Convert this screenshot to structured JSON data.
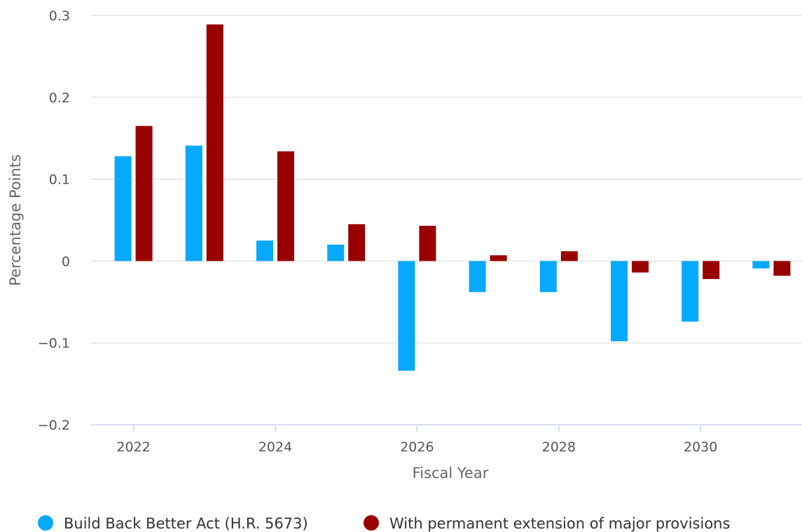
{
  "chart_data": {
    "type": "bar",
    "xlabel": "Fiscal Year",
    "ylabel": "Percentage Points",
    "categories": [
      "2022",
      "2023",
      "2024",
      "2025",
      "2026",
      "2027",
      "2028",
      "2029",
      "2030",
      "2031"
    ],
    "x_tick_labels": [
      "2022",
      "2024",
      "2026",
      "2028",
      "2030"
    ],
    "y_ticks": [
      0.3,
      0.2,
      0.1,
      0,
      -0.1,
      -0.2
    ],
    "y_tick_labels": [
      "0.3",
      "0.2",
      "0.1",
      "0",
      "−0.1",
      "−0.2"
    ],
    "ylim": [
      -0.2,
      0.3
    ],
    "grid": true,
    "legend_position": "bottom",
    "series": [
      {
        "name": "Build Back Better Act (H.R. 5673)",
        "color": "#06a9fc",
        "values": [
          0.128,
          0.141,
          0.025,
          0.02,
          -0.134,
          -0.038,
          -0.038,
          -0.098,
          -0.074,
          -0.009
        ]
      },
      {
        "name": "With permanent extension of major provisions",
        "color": "#990000",
        "values": [
          0.165,
          0.289,
          0.134,
          0.045,
          0.043,
          0.007,
          0.012,
          -0.014,
          -0.022,
          -0.018
        ]
      }
    ]
  }
}
